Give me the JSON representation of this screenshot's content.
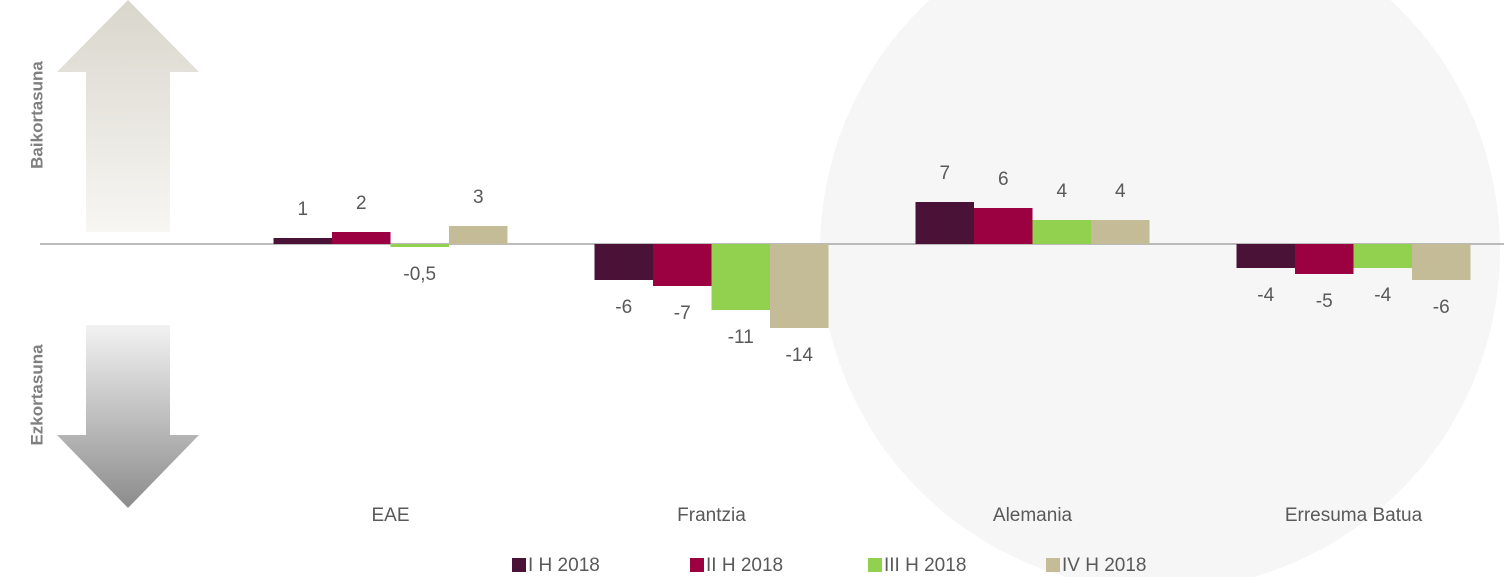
{
  "chart_data": {
    "type": "bar",
    "annotations": [
      "Baikortasuna",
      "Ezkortasuna"
    ],
    "categories": [
      "EAE",
      "Frantzia",
      "Alemania",
      "Erresuma Batua"
    ],
    "series": [
      {
        "name": "I H 2018",
        "color": "#4b1238",
        "values": [
          1,
          -6,
          7,
          -4
        ]
      },
      {
        "name": "II H 2018",
        "color": "#9b0040",
        "values": [
          2,
          -7,
          6,
          -5
        ]
      },
      {
        "name": "III H 2018",
        "color": "#92d050",
        "values": [
          -0.5,
          -11,
          4,
          -4
        ],
        "value_labels": [
          "-0,5",
          "-11",
          "4",
          "-4"
        ]
      },
      {
        "name": "IV H 2018",
        "color": "#c4bc96",
        "values": [
          3,
          -14,
          4,
          -6
        ]
      }
    ]
  }
}
